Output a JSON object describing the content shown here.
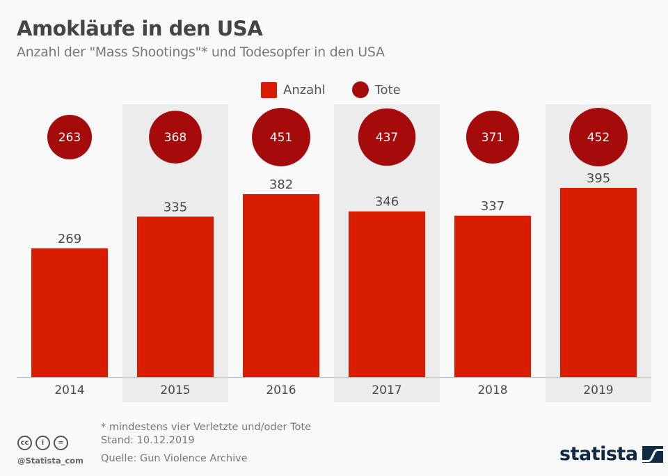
{
  "header": {
    "title": "Amokläufe in den USA",
    "subtitle": "Anzahl der \"Mass Shootings\"* und Todesopfer in den USA"
  },
  "legend": {
    "items": [
      {
        "label": "Anzahl",
        "shape": "square",
        "color": "#d71c00"
      },
      {
        "label": "Tote",
        "shape": "circle",
        "color": "#a60b0b"
      }
    ]
  },
  "chart_data": {
    "type": "bar",
    "title": "Amokläufe in den USA",
    "subtitle": "Anzahl der \"Mass Shootings\"* und Todesopfer in den USA",
    "xlabel": "",
    "ylabel": "",
    "categories": [
      "2014",
      "2015",
      "2016",
      "2017",
      "2018",
      "2019"
    ],
    "series": [
      {
        "name": "Anzahl",
        "type": "bar",
        "color": "#d71c00",
        "values": [
          269,
          335,
          382,
          346,
          337,
          395
        ]
      },
      {
        "name": "Tote",
        "type": "bubble",
        "color": "#a60b0b",
        "values": [
          263,
          368,
          451,
          437,
          371,
          452
        ]
      }
    ],
    "ylim": [
      0,
      400
    ],
    "grid": false,
    "legend_position": "top-center",
    "alternating_column_shading": true,
    "shade_color": "#ececec"
  },
  "footer": {
    "note": "* mindestens vier Verletzte und/oder Tote",
    "date": "Stand: 10.12.2019",
    "source": "Quelle: Gun Violence Archive",
    "handle": "@Statista_com",
    "license_icons": [
      "cc-icon",
      "by-icon",
      "nd-icon"
    ],
    "license_glyphs": [
      "cc",
      "i",
      "="
    ],
    "brand": "statista",
    "brand_color": "#0f2a44"
  }
}
